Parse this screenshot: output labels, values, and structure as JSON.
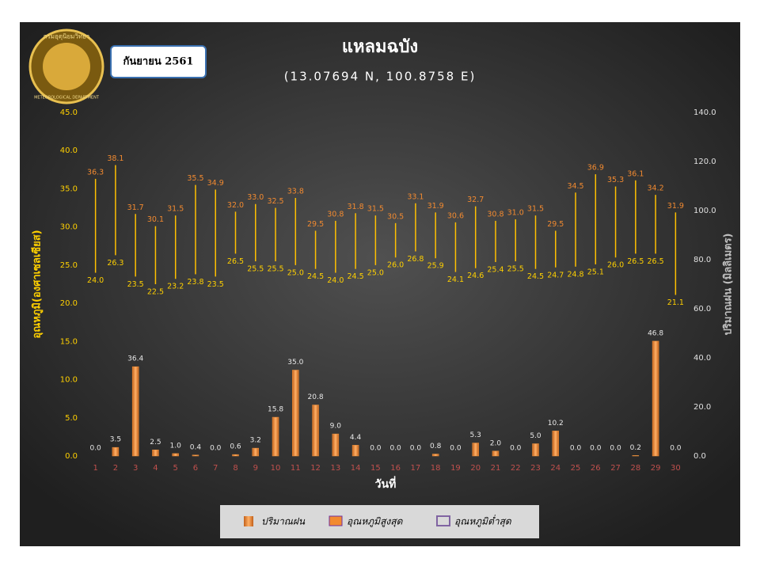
{
  "chart_data": {
    "type": "combo",
    "title": "แหลมฉบัง",
    "subtitle": "(13.07694 N, 100.8758 E)",
    "period": "กันยายน 2561",
    "logo": {
      "top": "กรมอุตุนิยมวิทยา",
      "bottom": "METEOROLOGICAL DEPARTMENT"
    },
    "x_label": "วันที่",
    "y_label": "อุณหภูมิ(องศาเซลเซียส)",
    "y2_label": "ปริมาณฝน (มิลลิเมตร)",
    "categories": [
      "1",
      "2",
      "3",
      "4",
      "5",
      "6",
      "7",
      "8",
      "9",
      "10",
      "11",
      "12",
      "13",
      "14",
      "15",
      "16",
      "17",
      "18",
      "19",
      "20",
      "21",
      "22",
      "23",
      "24",
      "25",
      "26",
      "27",
      "28",
      "29",
      "30"
    ],
    "ylim": [
      0,
      45
    ],
    "yticks": [
      {
        "value": 0,
        "label": "0.0"
      },
      {
        "value": 5,
        "label": "5.0"
      },
      {
        "value": 10,
        "label": "10.0"
      },
      {
        "value": 15,
        "label": "15.0"
      },
      {
        "value": 20,
        "label": "20.0"
      },
      {
        "value": 25,
        "label": "25.0"
      },
      {
        "value": 30,
        "label": "30.0"
      },
      {
        "value": 35,
        "label": "35.0"
      },
      {
        "value": 40,
        "label": "40.0"
      },
      {
        "value": 45,
        "label": "45.0"
      }
    ],
    "y2lim": [
      0,
      140
    ],
    "y2ticks": [
      {
        "value": 0,
        "label": "0.0"
      },
      {
        "value": 20,
        "label": "20.0"
      },
      {
        "value": 40,
        "label": "40.0"
      },
      {
        "value": 60,
        "label": "60.0"
      },
      {
        "value": 80,
        "label": "80.0"
      },
      {
        "value": 100,
        "label": "100.0"
      },
      {
        "value": 120,
        "label": "120.0"
      },
      {
        "value": 140,
        "label": "140.0"
      }
    ],
    "series": [
      {
        "name": "ปริมาณฝน",
        "type": "bar",
        "axis": "y2",
        "color": "#f0923a",
        "values": [
          0,
          3.5,
          36.4,
          2.5,
          1,
          0.4,
          0,
          0.6,
          3.2,
          15.8,
          35,
          20.8,
          9,
          4.4,
          0,
          0,
          0,
          0.8,
          0,
          5.3,
          2,
          0,
          5,
          10.2,
          0,
          0,
          0,
          0.2,
          46.8,
          0
        ],
        "value_labels": [
          "0.0",
          "3.5",
          "36.4",
          "2.5",
          "1.0",
          "0.4",
          "0.0",
          "0.6",
          "3.2",
          "15.8",
          "35.0",
          "20.8",
          "9.0",
          "4.4",
          "0.0",
          "0.0",
          "0.0",
          "0.8",
          "0.0",
          "5.3",
          "2.0",
          "0.0",
          "5.0",
          "10.2",
          "0.0",
          "0.0",
          "0.0",
          "0.2",
          "46.8",
          "0.0"
        ]
      },
      {
        "name": "อุณหภูมิสูงสุด",
        "type": "high",
        "color": "#f28a30",
        "values": [
          36.3,
          38.1,
          31.7,
          30.1,
          31.5,
          35.5,
          34.9,
          32,
          33,
          32.5,
          33.8,
          29.5,
          30.8,
          31.8,
          31.5,
          30.5,
          33.1,
          31.9,
          30.6,
          32.7,
          30.8,
          31,
          31.5,
          29.5,
          34.5,
          36.9,
          35.3,
          36.1,
          34.2,
          31.9
        ],
        "value_labels": [
          "36.3",
          "38.1",
          "31.7",
          "30.1",
          "31.5",
          "35.5",
          "34.9",
          "32.0",
          "33.0",
          "32.5",
          "33.8",
          "29.5",
          "30.8",
          "31.8",
          "31.5",
          "30.5",
          "33.1",
          "31.9",
          "30.6",
          "32.7",
          "30.8",
          "31.0",
          "31.5",
          "29.5",
          "34.5",
          "36.9",
          "35.3",
          "36.1",
          "34.2",
          "31.9"
        ]
      },
      {
        "name": "อุณหภูมิต่ำสุด",
        "type": "low",
        "color": "#ffd000",
        "values": [
          24,
          26.3,
          23.5,
          22.5,
          23.2,
          23.8,
          23.5,
          26.5,
          25.5,
          25.5,
          25,
          24.5,
          24,
          24.5,
          25,
          26,
          26.8,
          25.9,
          24.1,
          24.6,
          25.4,
          25.5,
          24.5,
          24.7,
          24.8,
          25.1,
          26,
          26.5,
          26.5,
          21.1
        ],
        "value_labels": [
          "24.0",
          "26.3",
          "23.5",
          "22.5",
          "23.2",
          "23.8",
          "23.5",
          "26.5",
          "25.5",
          "25.5",
          "25.0",
          "24.5",
          "24.0",
          "24.5",
          "25.0",
          "26.0",
          "26.8",
          "25.9",
          "24.1",
          "24.6",
          "25.4",
          "25.5",
          "24.5",
          "24.7",
          "24.8",
          "25.1",
          "26.0",
          "26.5",
          "26.5",
          "21.1"
        ]
      }
    ],
    "hilo_color": "#ffc000",
    "legend": "bottom"
  }
}
